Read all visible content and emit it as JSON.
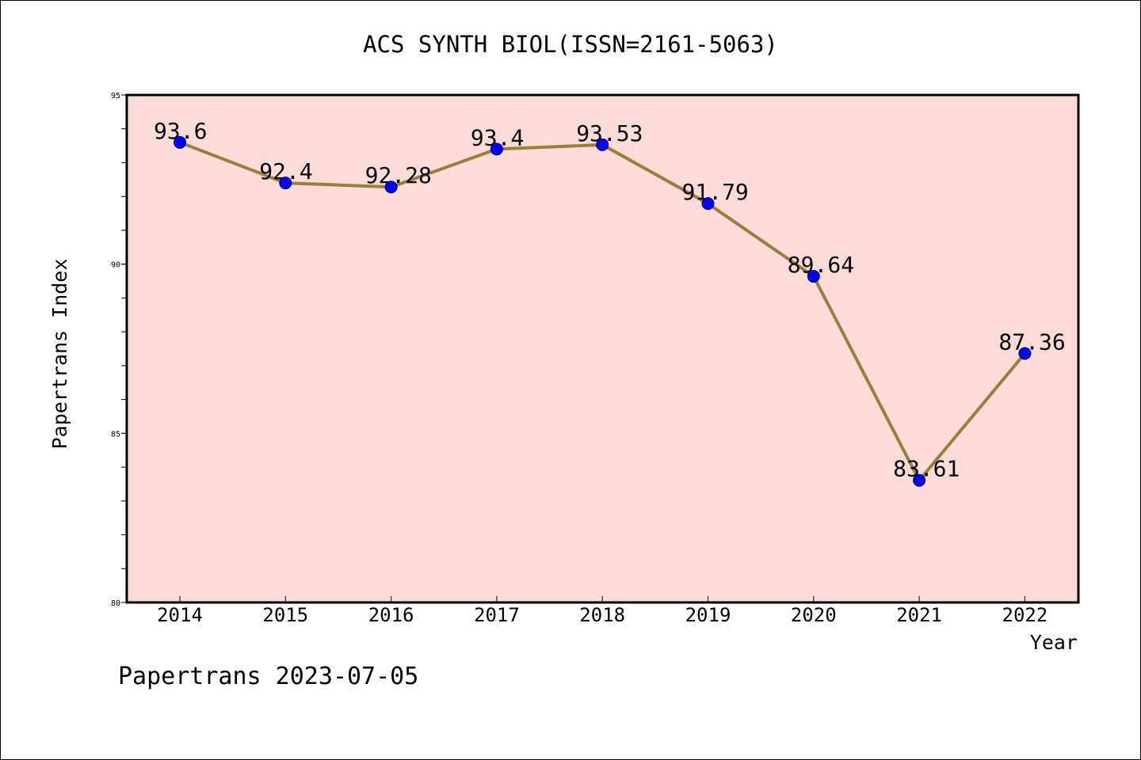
{
  "chart_data": {
    "type": "line",
    "title": "ACS SYNTH BIOL(ISSN=2161-5063)",
    "xlabel": "Year",
    "ylabel": "Papertrans Index",
    "x": [
      "2014",
      "2015",
      "2016",
      "2017",
      "2018",
      "2019",
      "2020",
      "2021",
      "2022"
    ],
    "series": [
      {
        "values": [
          93.6,
          92.4,
          92.28,
          93.4,
          93.53,
          91.79,
          89.64,
          83.61,
          87.36
        ]
      }
    ],
    "data_labels": [
      "93.6",
      "92.4",
      "92.28",
      "93.4",
      "93.53",
      "91.79",
      "89.64",
      "83.61",
      "87.36"
    ],
    "ylim": [
      80,
      95
    ],
    "yticks": [
      "80",
      "85",
      "90",
      "95"
    ],
    "grid": false,
    "legend": "none",
    "footer": "Papertrans 2023-07-05",
    "colors": {
      "plot_background": "#fddbd8",
      "line": "#9a7f3b",
      "marker": "#0000ff",
      "axis": "#000000"
    }
  }
}
